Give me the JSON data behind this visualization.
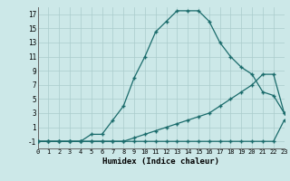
{
  "xlabel": "Humidex (Indice chaleur)",
  "bg_color": "#cce8e8",
  "grid_color": "#aacccc",
  "line_color": "#1a6b6b",
  "xlim": [
    0,
    23
  ],
  "ylim": [
    -2,
    18
  ],
  "xtick_vals": [
    0,
    1,
    2,
    3,
    4,
    5,
    6,
    7,
    8,
    9,
    10,
    11,
    12,
    13,
    14,
    15,
    16,
    17,
    18,
    19,
    20,
    21,
    22,
    23
  ],
  "ytick_vals": [
    -1,
    1,
    3,
    5,
    7,
    9,
    11,
    13,
    15,
    17
  ],
  "line1_x": [
    0,
    1,
    2,
    3,
    4,
    5,
    6,
    7,
    8,
    9,
    10,
    11,
    12,
    13,
    14,
    15,
    16,
    17,
    18,
    19,
    20,
    21,
    22,
    23
  ],
  "line1_y": [
    -1,
    -1,
    -1,
    -1,
    -1,
    -1,
    -1,
    -1,
    -1,
    -1,
    -1,
    -1,
    -1,
    -1,
    -1,
    -1,
    -1,
    -1,
    -1,
    -1,
    -1,
    -1,
    -1,
    2
  ],
  "line2_x": [
    0,
    1,
    2,
    3,
    4,
    5,
    6,
    7,
    8,
    9,
    10,
    11,
    12,
    13,
    14,
    15,
    16,
    17,
    18,
    19,
    20,
    21,
    22,
    23
  ],
  "line2_y": [
    -1,
    -1,
    -1,
    -1,
    -1,
    -1,
    -1,
    -1,
    -1,
    -0.5,
    0,
    0.5,
    1,
    1.5,
    2,
    2.5,
    3,
    4,
    5,
    6,
    7,
    8.5,
    8.5,
    3
  ],
  "line3_x": [
    0,
    1,
    2,
    3,
    4,
    5,
    6,
    7,
    8,
    9,
    10,
    11,
    12,
    13,
    14,
    15,
    16,
    17,
    18,
    19,
    20,
    21,
    22,
    23
  ],
  "line3_y": [
    -1,
    -1,
    -1,
    -1,
    -1,
    0,
    0,
    2,
    4,
    8,
    11,
    14.5,
    16,
    17.5,
    17.5,
    17.5,
    16,
    13,
    11,
    9.5,
    8.5,
    6,
    5.5,
    3
  ]
}
